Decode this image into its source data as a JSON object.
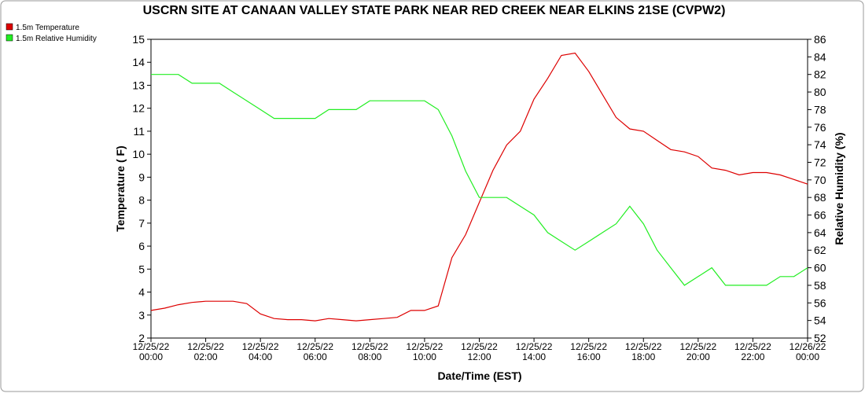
{
  "chart_data": {
    "type": "line",
    "title": "USCRN SITE AT CANAAN VALLEY STATE PARK NEAR RED CREEK NEAR ELKINS 21SE (CVPW2)",
    "x_label": "Date/Time (EST)",
    "y_label": "Temperature ( F)",
    "y2_label": "Relative Humidity (%)",
    "x": [
      0,
      0.5,
      1,
      1.5,
      2,
      2.5,
      3,
      3.5,
      4,
      4.5,
      5,
      5.5,
      6,
      6.5,
      7,
      7.5,
      8,
      8.5,
      9,
      9.5,
      10,
      10.5,
      11,
      11.5,
      12,
      12.5,
      13,
      13.5,
      14,
      14.5,
      15,
      15.5,
      16,
      16.5,
      17,
      17.5,
      18,
      18.5,
      19,
      19.5,
      20,
      20.5,
      21,
      21.5,
      22,
      22.5,
      23,
      23.5,
      24
    ],
    "xlim": [
      0,
      24
    ],
    "xticks": [
      {
        "value": 0,
        "label": "12/25/22\n00:00"
      },
      {
        "value": 2,
        "label": "12/25/22\n02:00"
      },
      {
        "value": 4,
        "label": "12/25/22\n04:00"
      },
      {
        "value": 6,
        "label": "12/25/22\n06:00"
      },
      {
        "value": 8,
        "label": "12/25/22\n08:00"
      },
      {
        "value": 10,
        "label": "12/25/22\n10:00"
      },
      {
        "value": 12,
        "label": "12/25/22\n12:00"
      },
      {
        "value": 14,
        "label": "12/25/22\n14:00"
      },
      {
        "value": 16,
        "label": "12/25/22\n16:00"
      },
      {
        "value": 18,
        "label": "12/25/22\n18:00"
      },
      {
        "value": 20,
        "label": "12/25/22\n20:00"
      },
      {
        "value": 22,
        "label": "12/25/22\n22:00"
      },
      {
        "value": 24,
        "label": "12/26/22\n00:00"
      }
    ],
    "ylim": [
      2,
      15
    ],
    "yticks": [
      2,
      3,
      4,
      5,
      6,
      7,
      8,
      9,
      10,
      11,
      12,
      13,
      14,
      15
    ],
    "y2lim": [
      52,
      86
    ],
    "y2ticks": [
      52,
      54,
      56,
      58,
      60,
      62,
      64,
      66,
      68,
      70,
      72,
      74,
      76,
      78,
      80,
      82,
      84,
      86
    ],
    "legend": "top-left",
    "series": [
      {
        "name": "1.5m Temperature",
        "color": "#dd0000",
        "values": [
          3.2,
          3.3,
          3.45,
          3.55,
          3.6,
          3.6,
          3.6,
          3.5,
          3.05,
          2.85,
          2.8,
          2.8,
          2.75,
          2.85,
          2.8,
          2.75,
          2.8,
          2.85,
          2.9,
          3.2,
          3.2,
          3.4,
          5.5,
          6.5,
          7.9,
          9.3,
          10.4,
          11.0,
          12.4,
          13.3,
          14.3,
          14.4,
          13.6,
          12.6,
          11.6,
          11.1,
          11.0,
          10.6,
          10.2,
          10.1,
          9.9,
          9.4,
          9.3,
          9.1,
          9.2,
          9.2,
          9.1,
          8.9,
          8.7
        ]
      },
      {
        "name": "1.5m Relative Humidity",
        "color": "#22ee22",
        "axis": "y2",
        "values": [
          82,
          82,
          82,
          81,
          81,
          81,
          80,
          79,
          78,
          77,
          77,
          77,
          77,
          78,
          78,
          78,
          79,
          79,
          79,
          79,
          79,
          78,
          75,
          71,
          68,
          68,
          68,
          67,
          66,
          64,
          63,
          62,
          63,
          64,
          65,
          67,
          65,
          62,
          60,
          58,
          59,
          60,
          58,
          58,
          58,
          58,
          59,
          59,
          60
        ]
      }
    ]
  }
}
